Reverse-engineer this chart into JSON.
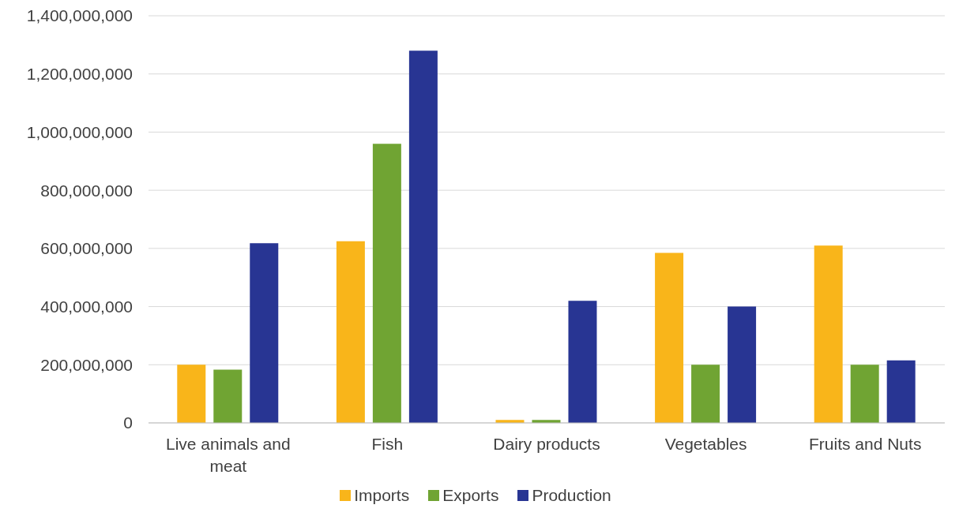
{
  "chart_data": {
    "type": "bar",
    "categories": [
      "Live animals and meat",
      "Fish",
      "Dairy products",
      "Vegetables",
      "Fruits and Nuts"
    ],
    "series": [
      {
        "name": "Imports",
        "color": "#f9b51a",
        "values": [
          200000000,
          625000000,
          10000000,
          585000000,
          610000000
        ]
      },
      {
        "name": "Exports",
        "color": "#70a433",
        "values": [
          183000000,
          960000000,
          10000000,
          200000000,
          200000000
        ]
      },
      {
        "name": "Production",
        "color": "#283593",
        "values": [
          618000000,
          1280000000,
          420000000,
          400000000,
          215000000
        ]
      }
    ],
    "ylim": [
      0,
      1400000000
    ],
    "yticks": [
      0,
      {
        "value": 200000000,
        "label": "200,000,000"
      },
      {
        "value": 400000000,
        "label": "400,000,000"
      },
      {
        "value": 600000000,
        "label": "600,000,000"
      },
      {
        "value": 800000000,
        "label": "800,000,000"
      },
      {
        "value": 1000000000,
        "label": "1,000,000,000"
      },
      {
        "value": 1200000000,
        "label": "1,200,000,000"
      },
      {
        "value": 1400000000,
        "label": "1,400,000,000"
      }
    ],
    "grid": "y",
    "legend": "bottom"
  }
}
